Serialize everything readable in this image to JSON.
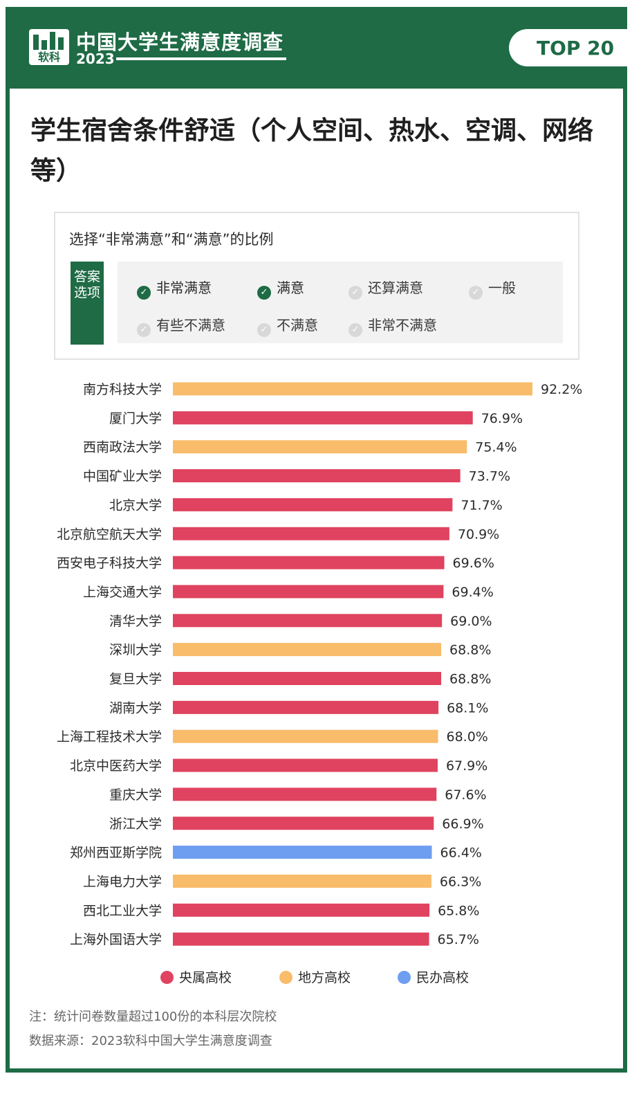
{
  "header": {
    "logo_text": "软科",
    "survey_title": "中国大学生满意度调查",
    "survey_year": "2023",
    "badge": "TOP 20"
  },
  "main_title": "学生宿舍条件舒适（个人空间、热水、空调、网络等）",
  "legend_box": {
    "heading": "选择“非常满意”和“满意”的比例",
    "answer_tag": "答案选项",
    "options": [
      {
        "label": "非常满意",
        "selected": true
      },
      {
        "label": "满意",
        "selected": true
      },
      {
        "label": "还算满意",
        "selected": false
      },
      {
        "label": "一般",
        "selected": false
      },
      {
        "label": "有些不满意",
        "selected": false
      },
      {
        "label": "不满意",
        "selected": false
      },
      {
        "label": "非常不满意",
        "selected": false
      }
    ]
  },
  "colors": {
    "brand_green": "#1e6b45",
    "central": "#e0435f",
    "local": "#f8bc6a",
    "private": "#6e9ef0"
  },
  "chart_data": {
    "type": "bar",
    "orientation": "horizontal",
    "categories": [
      "南方科技大学",
      "厦门大学",
      "西南政法大学",
      "中国矿业大学",
      "北京大学",
      "北京航空航天大学",
      "西安电子科技大学",
      "上海交通大学",
      "清华大学",
      "深圳大学",
      "复旦大学",
      "湖南大学",
      "上海工程技术大学",
      "北京中医药大学",
      "重庆大学",
      "浙江大学",
      "郑州西亚斯学院",
      "上海电力大学",
      "西北工业大学",
      "上海外国语大学"
    ],
    "values": [
      92.2,
      76.9,
      75.4,
      73.7,
      71.7,
      70.9,
      69.6,
      69.4,
      69.0,
      68.8,
      68.8,
      68.1,
      68.0,
      67.9,
      67.6,
      66.9,
      66.4,
      66.3,
      65.8,
      65.7
    ],
    "value_labels": [
      "92.2%",
      "76.9%",
      "75.4%",
      "73.7%",
      "71.7%",
      "70.9%",
      "69.6%",
      "69.4%",
      "69.0%",
      "68.8%",
      "68.8%",
      "68.1%",
      "68.0%",
      "67.9%",
      "67.6%",
      "66.9%",
      "66.4%",
      "66.3%",
      "65.8%",
      "65.7%"
    ],
    "groups": [
      "地方高校",
      "央属高校",
      "地方高校",
      "央属高校",
      "央属高校",
      "央属高校",
      "央属高校",
      "央属高校",
      "央属高校",
      "地方高校",
      "央属高校",
      "央属高校",
      "地方高校",
      "央属高校",
      "央属高校",
      "央属高校",
      "民办高校",
      "地方高校",
      "央属高校",
      "央属高校"
    ],
    "unit": "%",
    "xlim": [
      0,
      92.2
    ],
    "legend": [
      {
        "name": "央属高校",
        "color": "#e0435f"
      },
      {
        "name": "地方高校",
        "color": "#f8bc6a"
      },
      {
        "name": "民办高校",
        "color": "#6e9ef0"
      }
    ],
    "legend_position": "bottom",
    "grid": false
  },
  "footnotes": {
    "note": "注：统计问卷数量超过100份的本科层次院校",
    "source": "数据来源：2023软科中国大学生满意度调查"
  }
}
